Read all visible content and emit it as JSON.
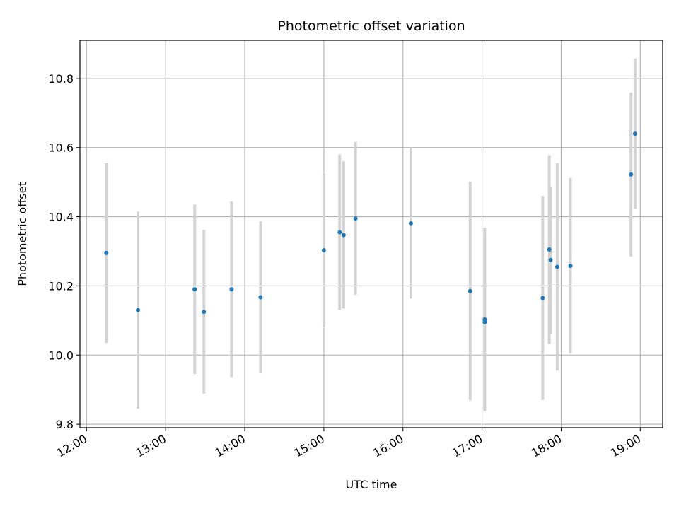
{
  "chart_data": {
    "type": "scatter",
    "title": "Photometric offset variation",
    "xlabel": "UTC time",
    "ylabel": "Photometric offset",
    "x_ticks": [
      "12:00",
      "13:00",
      "14:00",
      "15:00",
      "16:00",
      "17:00",
      "18:00",
      "19:00"
    ],
    "y_ticks": [
      "9.8",
      "10.0",
      "10.2",
      "10.4",
      "10.6",
      "10.8"
    ],
    "xlim": [
      "11:55",
      "19:17"
    ],
    "ylim": [
      9.79,
      10.91
    ],
    "grid": true,
    "marker_color": "#1f77b4",
    "errorbar_color": "#d3d3d3",
    "points": [
      {
        "x": "12:15",
        "y": 10.295,
        "err": 0.26
      },
      {
        "x": "12:39",
        "y": 10.13,
        "err": 0.285
      },
      {
        "x": "13:22",
        "y": 10.19,
        "err": 0.245
      },
      {
        "x": "13:29",
        "y": 10.125,
        "err": 0.237
      },
      {
        "x": "13:50",
        "y": 10.19,
        "err": 0.254
      },
      {
        "x": "14:12",
        "y": 10.167,
        "err": 0.22
      },
      {
        "x": "15:00",
        "y": 10.303,
        "err": 0.221
      },
      {
        "x": "15:12",
        "y": 10.355,
        "err": 0.225
      },
      {
        "x": "15:15",
        "y": 10.347,
        "err": 0.213
      },
      {
        "x": "15:24",
        "y": 10.395,
        "err": 0.221
      },
      {
        "x": "16:06",
        "y": 10.381,
        "err": 0.218
      },
      {
        "x": "16:51",
        "y": 10.185,
        "err": 0.316
      },
      {
        "x": "17:02",
        "y": 10.095,
        "err": 0.25
      },
      {
        "x": "17:02",
        "y": 10.103,
        "err": 0.265
      },
      {
        "x": "17:46",
        "y": 10.165,
        "err": 0.295
      },
      {
        "x": "17:51",
        "y": 10.305,
        "err": 0.273
      },
      {
        "x": "17:52",
        "y": 10.275,
        "err": 0.213
      },
      {
        "x": "17:57",
        "y": 10.255,
        "err": 0.3
      },
      {
        "x": "18:07",
        "y": 10.258,
        "err": 0.254
      },
      {
        "x": "18:53",
        "y": 10.522,
        "err": 0.237
      },
      {
        "x": "18:56",
        "y": 10.64,
        "err": 0.217
      }
    ]
  }
}
